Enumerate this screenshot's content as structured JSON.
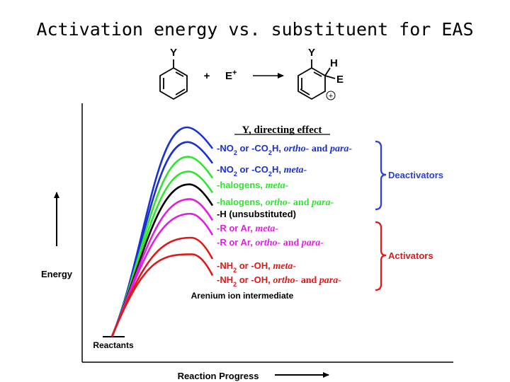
{
  "title": "Activation energy vs. substituent for EAS",
  "reaction": {
    "substituent": "Y",
    "plus": "+",
    "electrophile": "E",
    "electrophile_charge": "+",
    "h_atom": "H",
    "e_atom": "E",
    "cation_charge": "+"
  },
  "diagram": {
    "y_axis_label": "Energy",
    "x_axis_label": "Reaction Progress",
    "reactants_label": "Reactants",
    "intermediate_label": "Arenium ion intermediate",
    "legend_title": "Y, directing effect",
    "deactivators_label": "Deactivators",
    "activators_label": "Activators",
    "colors": {
      "blue": "#1a2fd6",
      "green": "#2ee62e",
      "black": "#000000",
      "magenta": "#e020e0",
      "red": "#e01818"
    },
    "curves": [
      {
        "label": "-NO2 or -CO2H, ortho- and para-",
        "color": "blue",
        "energy": 1.0
      },
      {
        "label": "-NO2 or -CO2H, meta-",
        "color": "blue",
        "energy": 0.92
      },
      {
        "label": "-halogens, meta-",
        "color": "green",
        "energy": 0.84
      },
      {
        "label": "-halogens, ortho- and para-",
        "color": "green",
        "energy": 0.76
      },
      {
        "label": "-H (unsubstituted)",
        "color": "black",
        "energy": 0.69
      },
      {
        "label": "-R or Ar, meta-",
        "color": "magenta",
        "energy": 0.61
      },
      {
        "label": "-R or Ar, ortho- and para-",
        "color": "magenta",
        "energy": 0.53
      },
      {
        "label": "-NH2 or -OH, meta-",
        "color": "red",
        "energy": 0.4
      },
      {
        "label": "-NH2 or -OH, ortho- and para-",
        "color": "red",
        "energy": 0.31
      }
    ],
    "legend_rows": [
      {
        "color": "blue",
        "head": "-NO",
        "sub": "2",
        "mid": " or -CO",
        "sub2": "2",
        "tail": "H, ",
        "ital": "ortho-",
        "and": " and ",
        "ital2": "para-"
      },
      {
        "color": "blue",
        "head": "-NO",
        "sub": "2",
        "mid": " or -CO",
        "sub2": "2",
        "tail": "H, ",
        "ital": "meta-",
        "and": "",
        "ital2": ""
      },
      {
        "color": "green",
        "head": "-halogens, ",
        "sub": "",
        "mid": "",
        "sub2": "",
        "tail": "",
        "ital": "meta-",
        "and": "",
        "ital2": ""
      },
      {
        "color": "green",
        "head": "-halogens, ",
        "sub": "",
        "mid": "",
        "sub2": "",
        "tail": "",
        "ital": "ortho-",
        "and": " and ",
        "ital2": "para-"
      },
      {
        "color": "black",
        "head": "-H (unsubstituted)",
        "sub": "",
        "mid": "",
        "sub2": "",
        "tail": "",
        "ital": "",
        "and": "",
        "ital2": ""
      },
      {
        "color": "magenta",
        "head": "-R or Ar, ",
        "sub": "",
        "mid": "",
        "sub2": "",
        "tail": "",
        "ital": "meta-",
        "and": "",
        "ital2": ""
      },
      {
        "color": "magenta",
        "head": "-R or Ar, ",
        "sub": "",
        "mid": "",
        "sub2": "",
        "tail": "",
        "ital": "ortho-",
        "and": " and ",
        "ital2": "para-"
      },
      {
        "color": "red",
        "head": "-NH",
        "sub": "2",
        "mid": " or -OH, ",
        "sub2": "",
        "tail": "",
        "ital": "meta-",
        "and": "",
        "ital2": ""
      },
      {
        "color": "red",
        "head": "-NH",
        "sub": "2",
        "mid": " or -OH, ",
        "sub2": "",
        "tail": "",
        "ital": "ortho-",
        "and": " and ",
        "ital2": "para-"
      }
    ]
  }
}
